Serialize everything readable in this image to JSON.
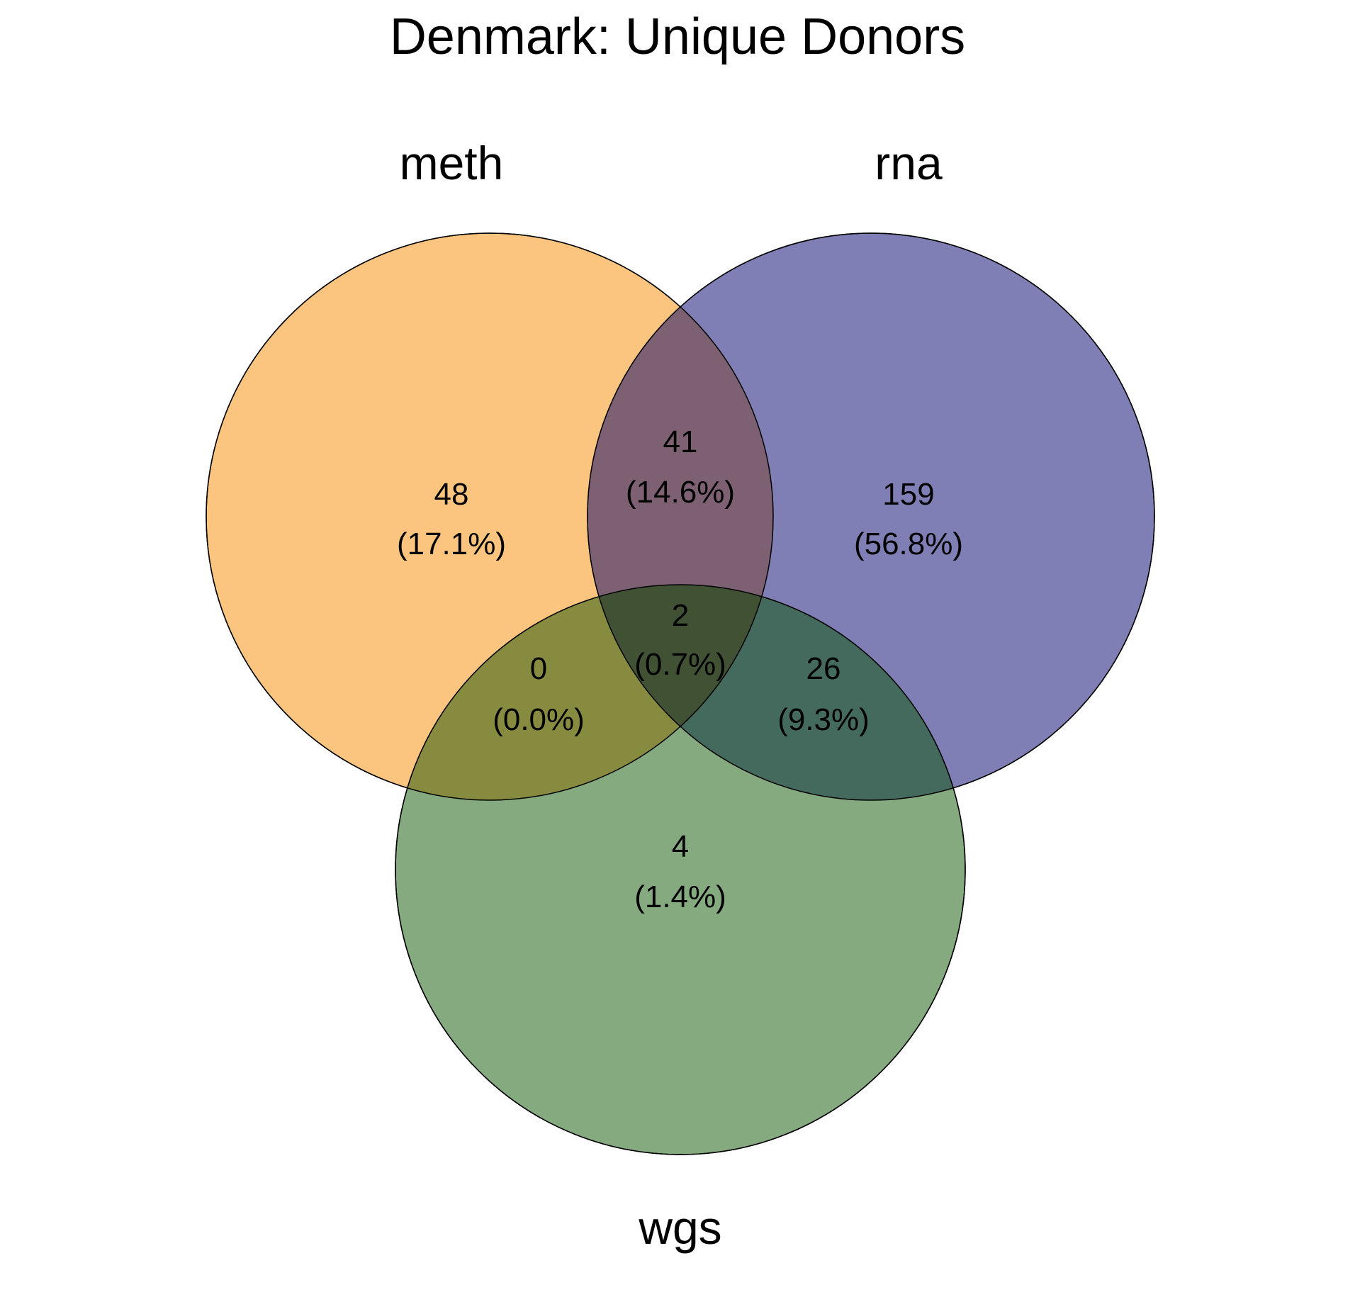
{
  "chart_data": {
    "type": "venn",
    "title": "Denmark: Unique Donors",
    "sets": [
      {
        "key": "meth",
        "label": "meth",
        "color": "#fbc57f"
      },
      {
        "key": "rna",
        "label": "rna",
        "color": "#807fb5"
      },
      {
        "key": "wgs",
        "label": "wgs",
        "color": "#85aa7f"
      }
    ],
    "regions": [
      {
        "sets": [
          "meth"
        ],
        "count": "48",
        "percent": "(17.1%)"
      },
      {
        "sets": [
          "meth",
          "rna"
        ],
        "count": "41",
        "percent": "(14.6%)"
      },
      {
        "sets": [
          "rna"
        ],
        "count": "159",
        "percent": "(56.8%)"
      },
      {
        "sets": [
          "meth",
          "rna",
          "wgs"
        ],
        "count": "2",
        "percent": "(0.7%)"
      },
      {
        "sets": [
          "meth",
          "wgs"
        ],
        "count": "0",
        "percent": "(0.0%)"
      },
      {
        "sets": [
          "rna",
          "wgs"
        ],
        "count": "26",
        "percent": "(9.3%)"
      },
      {
        "sets": [
          "wgs"
        ],
        "count": "4",
        "percent": "(1.4%)"
      }
    ]
  }
}
